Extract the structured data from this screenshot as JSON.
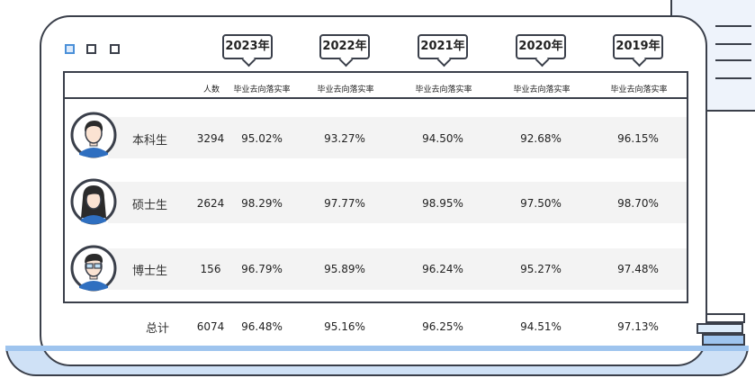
{
  "years": [
    "2023年",
    "2022年",
    "2021年",
    "2020年",
    "2019年"
  ],
  "headers": {
    "count": "人数",
    "rate": "毕业去向落实率"
  },
  "rows": [
    {
      "label": "本科生",
      "count": "3294",
      "rates": [
        "95.02%",
        "93.27%",
        "94.50%",
        "92.68%",
        "96.15%"
      ]
    },
    {
      "label": "硕士生",
      "count": "2624",
      "rates": [
        "98.29%",
        "97.77%",
        "98.95%",
        "97.50%",
        "98.70%"
      ]
    },
    {
      "label": "博士生",
      "count": "156",
      "rates": [
        "96.79%",
        "95.89%",
        "96.24%",
        "95.27%",
        "97.48%"
      ]
    }
  ],
  "total": {
    "label": "总计",
    "count": "6074",
    "rates": [
      "96.48%",
      "95.16%",
      "96.25%",
      "94.51%",
      "97.13%"
    ]
  },
  "colors": {
    "outline": "#3a3f4a",
    "stripe": "#f3f3f3",
    "base_fill": "#cfe1f6",
    "accent_blue": "#4a8fd8",
    "avatar_shirt": "#2f6fc0"
  }
}
